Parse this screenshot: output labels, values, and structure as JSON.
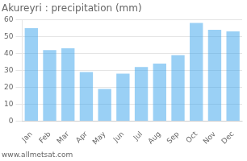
{
  "chart_data": {
    "type": "bar",
    "title": "Akureyri : precipitation (mm)",
    "categories": [
      "Jan",
      "Feb",
      "Mar",
      "Apr",
      "May",
      "Jun",
      "Jul",
      "Aug",
      "Sep",
      "Oct",
      "Nov",
      "Dec"
    ],
    "values": [
      55,
      42,
      43,
      29,
      19,
      28,
      32,
      34,
      39,
      58,
      54,
      53
    ],
    "ylim": [
      0,
      60
    ],
    "yticks": [
      0,
      10,
      20,
      30,
      40,
      50,
      60
    ],
    "grid": true,
    "annotation": "www.allmetsat.com"
  }
}
